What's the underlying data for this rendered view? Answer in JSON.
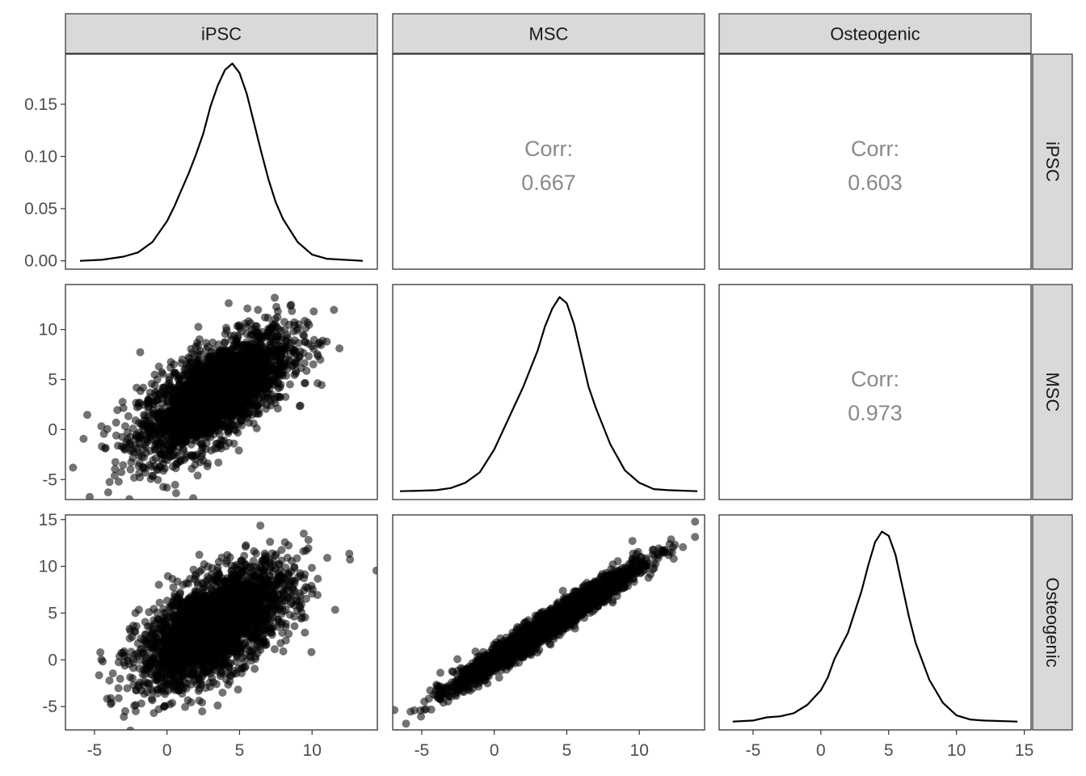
{
  "chart_data": {
    "type": "pairs",
    "variables": [
      "iPSC",
      "MSC",
      "Osteogenic"
    ],
    "correlations": [
      {
        "row": "iPSC",
        "col": "MSC",
        "label": "Corr:",
        "value": "0.667"
      },
      {
        "row": "iPSC",
        "col": "Osteogenic",
        "label": "Corr:",
        "value": "0.603"
      },
      {
        "row": "MSC",
        "col": "Osteogenic",
        "label": "Corr:",
        "value": "0.973"
      }
    ],
    "density_y_ticks": [
      "0.00",
      "0.05",
      "0.10",
      "0.15"
    ],
    "axis_ticks": {
      "iPSC": [
        "-5",
        "0",
        "5",
        "10"
      ],
      "MSC": [
        "-5",
        "0",
        "5",
        "10"
      ],
      "Osteogenic": [
        "-5",
        "0",
        "5",
        "10",
        "15"
      ]
    },
    "axis_limits": {
      "iPSC": [
        -7,
        14.5
      ],
      "MSC": [
        -7,
        14.5
      ],
      "Osteogenic": [
        -7.5,
        15.5
      ]
    },
    "density_ylim": [
      -0.008,
      0.198
    ],
    "densities": {
      "iPSC": {
        "x": [
          -6.0,
          -4.5,
          -3.0,
          -2.0,
          -1.0,
          0.0,
          0.5,
          1.0,
          1.5,
          2.0,
          2.5,
          3.0,
          3.5,
          4.0,
          4.5,
          5.0,
          5.5,
          6.0,
          6.5,
          7.0,
          7.5,
          8.0,
          9.0,
          10.0,
          11.0,
          13.5
        ],
        "y": [
          0.0,
          0.001,
          0.004,
          0.008,
          0.018,
          0.038,
          0.052,
          0.068,
          0.084,
          0.102,
          0.122,
          0.148,
          0.168,
          0.183,
          0.189,
          0.18,
          0.16,
          0.132,
          0.104,
          0.078,
          0.056,
          0.04,
          0.018,
          0.006,
          0.002,
          0.0
        ]
      },
      "MSC": {
        "x": [
          -6.5,
          -5.0,
          -4.0,
          -3.0,
          -2.0,
          -1.0,
          0.0,
          1.0,
          2.0,
          3.0,
          3.5,
          4.0,
          4.5,
          5.0,
          5.5,
          6.0,
          6.5,
          7.0,
          8.0,
          9.0,
          10.0,
          11.0,
          12.0,
          14.0
        ],
        "y": [
          0.0,
          0.0005,
          0.001,
          0.003,
          0.008,
          0.018,
          0.04,
          0.07,
          0.1,
          0.135,
          0.158,
          0.175,
          0.186,
          0.18,
          0.16,
          0.13,
          0.1,
          0.08,
          0.045,
          0.02,
          0.008,
          0.002,
          0.001,
          0.0
        ]
      },
      "Osteogenic": {
        "x": [
          -6.5,
          -5.0,
          -4.0,
          -3.0,
          -2.0,
          -1.0,
          0.0,
          0.5,
          1.0,
          2.0,
          3.0,
          3.5,
          4.0,
          4.5,
          5.0,
          5.5,
          6.0,
          6.5,
          7.0,
          8.0,
          9.0,
          10.0,
          11.0,
          12.0,
          14.5
        ],
        "y": [
          0.0,
          0.001,
          0.004,
          0.005,
          0.008,
          0.016,
          0.03,
          0.042,
          0.06,
          0.085,
          0.125,
          0.15,
          0.172,
          0.182,
          0.178,
          0.16,
          0.13,
          0.1,
          0.075,
          0.04,
          0.018,
          0.006,
          0.002,
          0.001,
          0.0
        ]
      }
    },
    "scatter": [
      {
        "x": "iPSC",
        "y": "MSC",
        "n": 2600,
        "mean": [
          3.3,
          3.6
        ],
        "sd": [
          2.6,
          3.1
        ],
        "r": 0.667,
        "point_color": "#000000",
        "point_alpha": 0.55
      },
      {
        "x": "iPSC",
        "y": "Osteogenic",
        "n": 2600,
        "mean": [
          3.3,
          3.6
        ],
        "sd": [
          2.6,
          3.2
        ],
        "r": 0.603,
        "point_color": "#000000",
        "point_alpha": 0.55
      },
      {
        "x": "MSC",
        "y": "Osteogenic",
        "n": 2600,
        "mean": [
          3.6,
          3.6
        ],
        "sd": [
          3.1,
          3.2
        ],
        "r": 0.973,
        "point_color": "#000000",
        "point_alpha": 0.55
      }
    ],
    "colors": {
      "strip_fill": "#d9d9d9",
      "panel_border": "#333333",
      "corr_text": "#8a8a8a",
      "line": "#000000"
    }
  }
}
